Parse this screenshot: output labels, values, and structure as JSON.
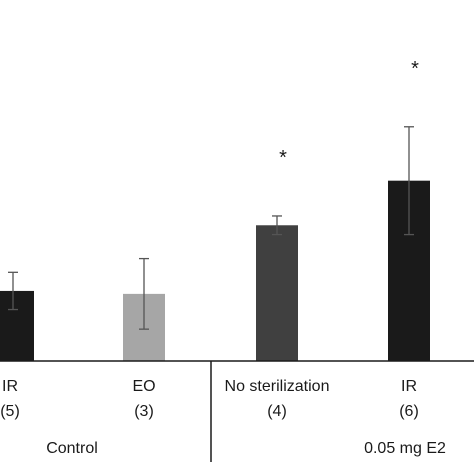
{
  "chart_data": {
    "type": "bar",
    "categories": [
      "IR",
      "EO",
      "No sterilization",
      "IR"
    ],
    "counts": [
      "(5)",
      "(3)",
      "(4)",
      "(6)"
    ],
    "groups": [
      {
        "label": "Control",
        "categories": [
          0,
          1
        ]
      },
      {
        "label": "0.05 mg E2",
        "categories": [
          2,
          3
        ]
      }
    ],
    "values": [
      1.43,
      1.37,
      2.77,
      3.68
    ],
    "error": [
      0.38,
      0.72,
      0.19,
      1.1
    ],
    "significance": [
      "",
      "",
      "*",
      "*"
    ],
    "colors": [
      "#1a1a1a",
      "#a6a6a6",
      "#404040",
      "#1a1a1a"
    ],
    "ylim": [
      0,
      6
    ],
    "grid": false,
    "title": "",
    "xlabel": "",
    "ylabel": ""
  }
}
